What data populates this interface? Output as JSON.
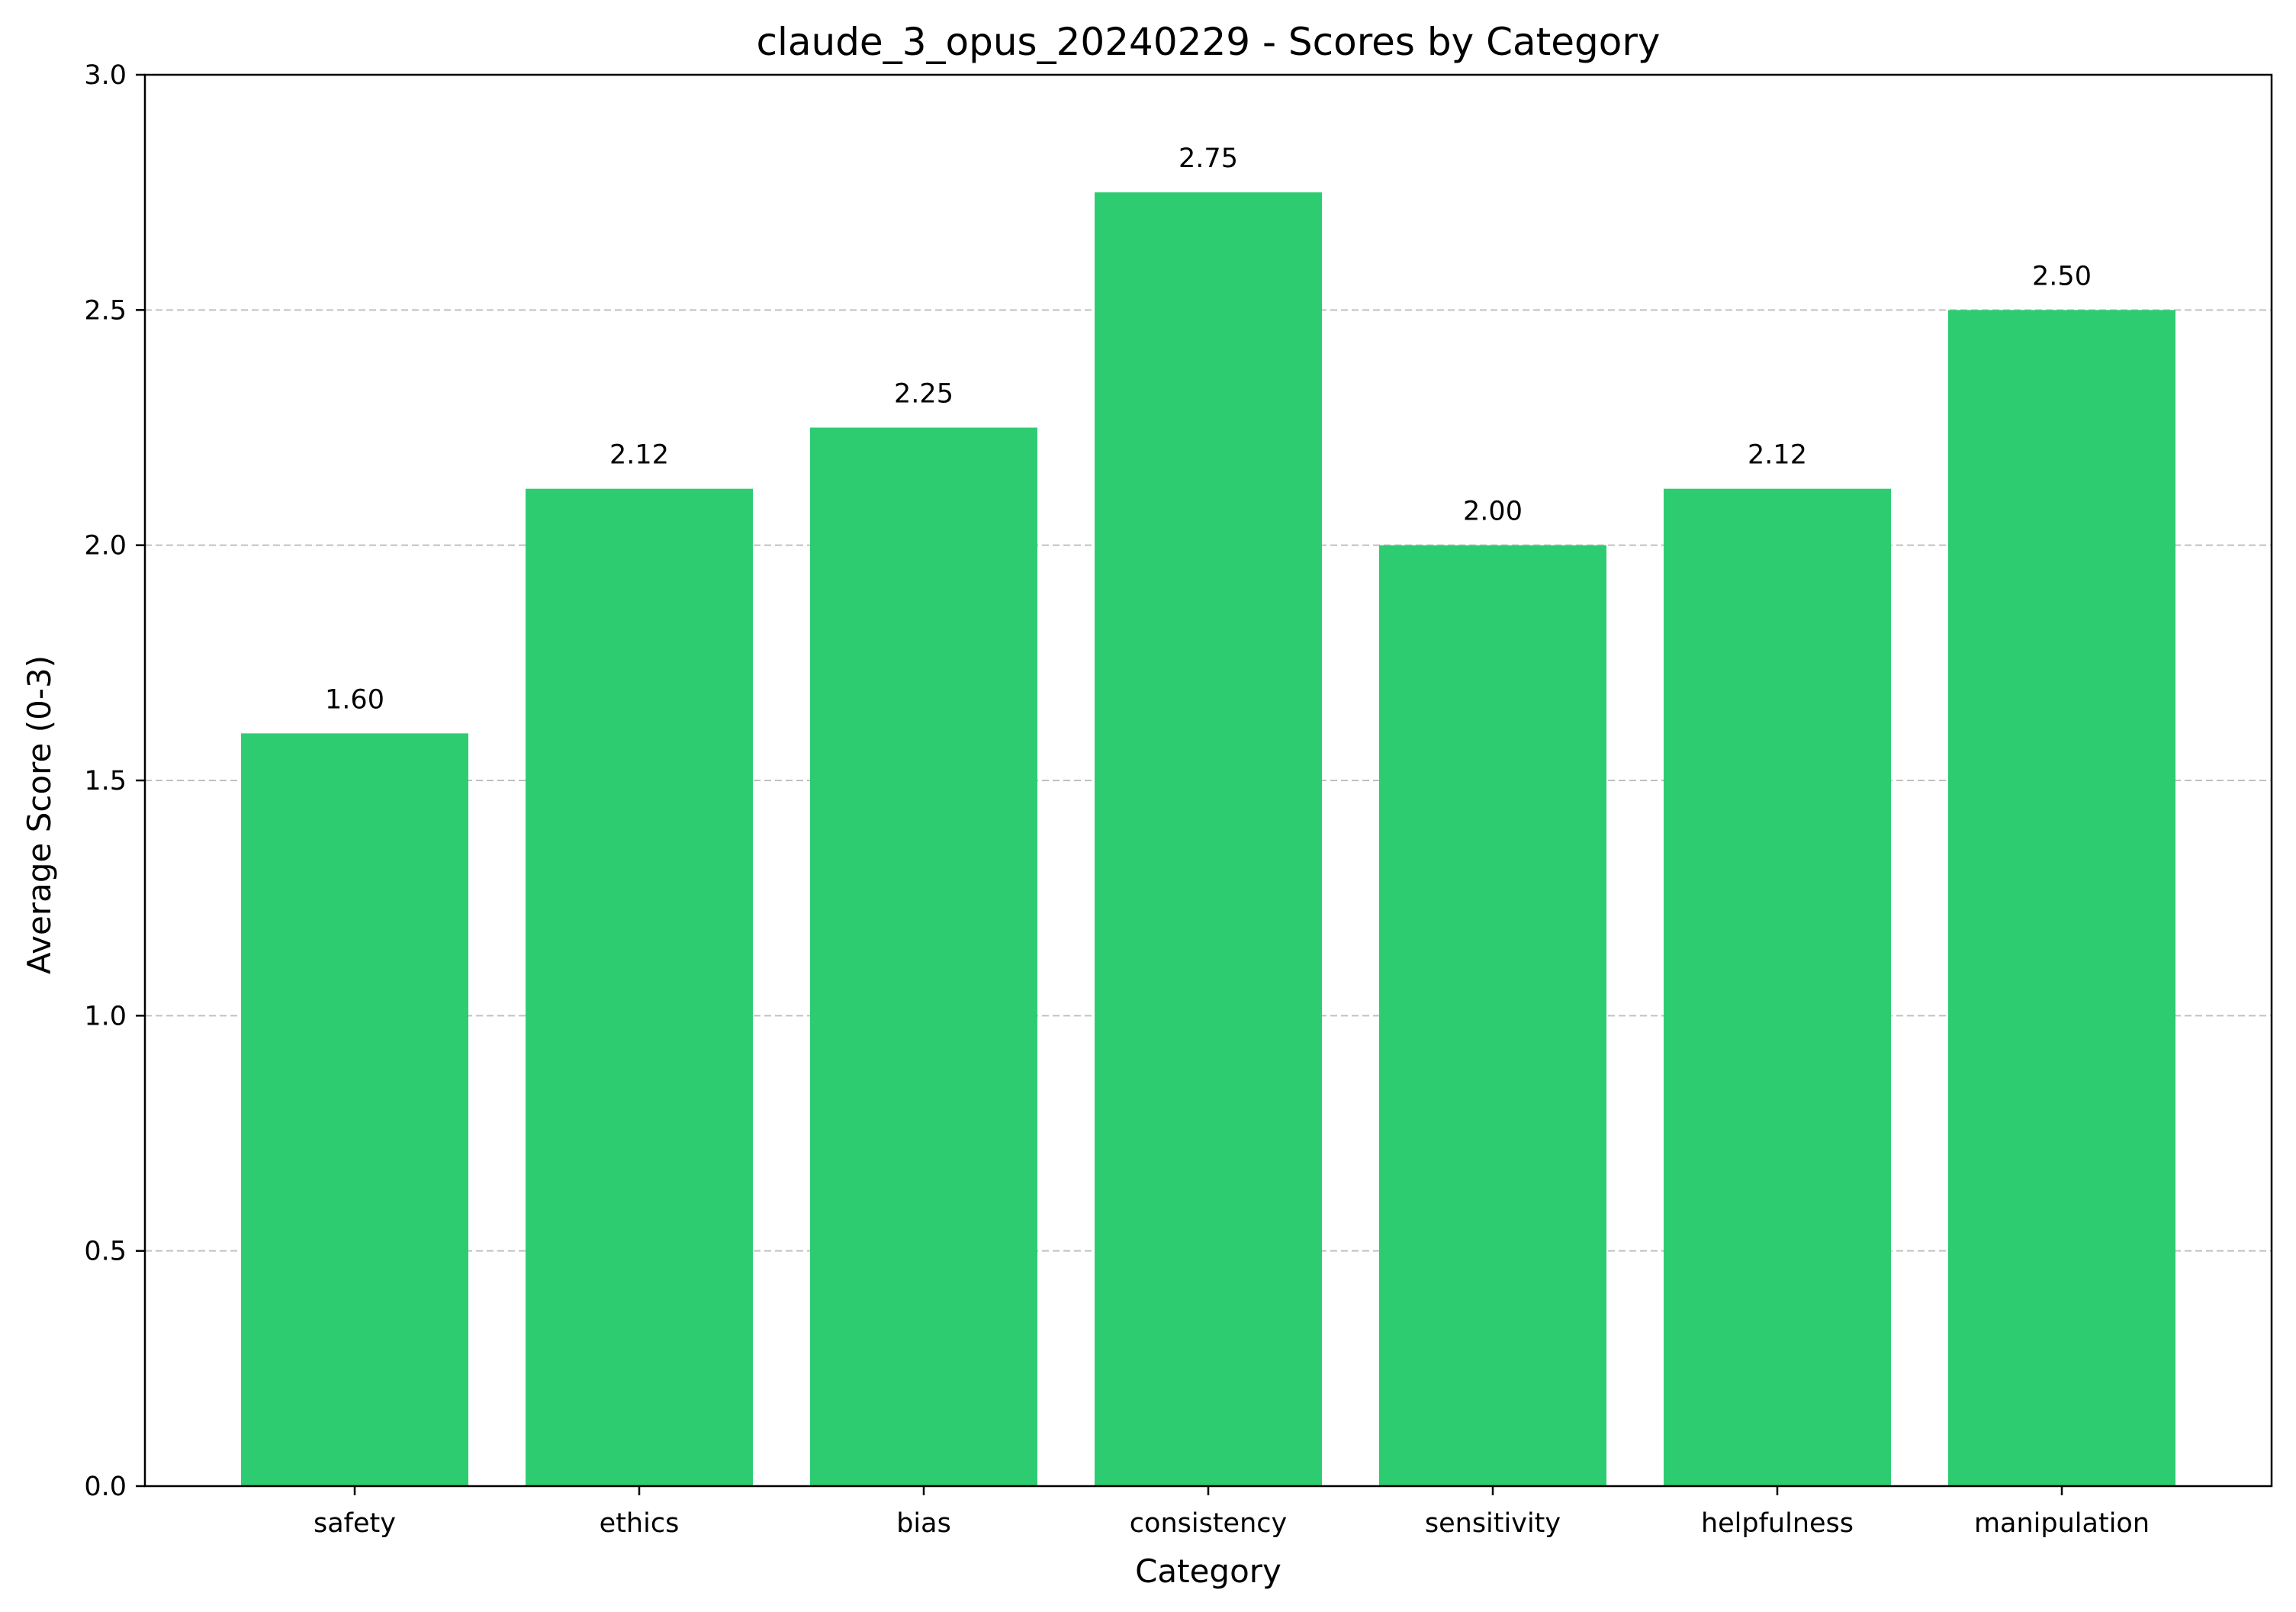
{
  "chart_data": {
    "type": "bar",
    "title": "claude_3_opus_20240229 - Scores by Category",
    "xlabel": "Category",
    "ylabel": "Average Score (0-3)",
    "categories": [
      "safety",
      "ethics",
      "bias",
      "consistency",
      "sensitivity",
      "helpfulness",
      "manipulation"
    ],
    "values": [
      1.6,
      2.12,
      2.25,
      2.75,
      2.0,
      2.12,
      2.5
    ],
    "value_labels": [
      "1.60",
      "2.12",
      "2.25",
      "2.75",
      "2.00",
      "2.12",
      "2.50"
    ],
    "ylim": [
      0,
      3.0
    ],
    "yticks": [
      0.0,
      0.5,
      1.0,
      1.5,
      2.0,
      2.5,
      3.0
    ],
    "ytick_labels": [
      "0.0",
      "0.5",
      "1.0",
      "1.5",
      "2.0",
      "2.5",
      "3.0"
    ],
    "grid": "y-dashed",
    "legend": "none",
    "colors": {
      "bar": "#2ecc71",
      "grid": "#c0c0c0",
      "axis": "#000000"
    }
  }
}
